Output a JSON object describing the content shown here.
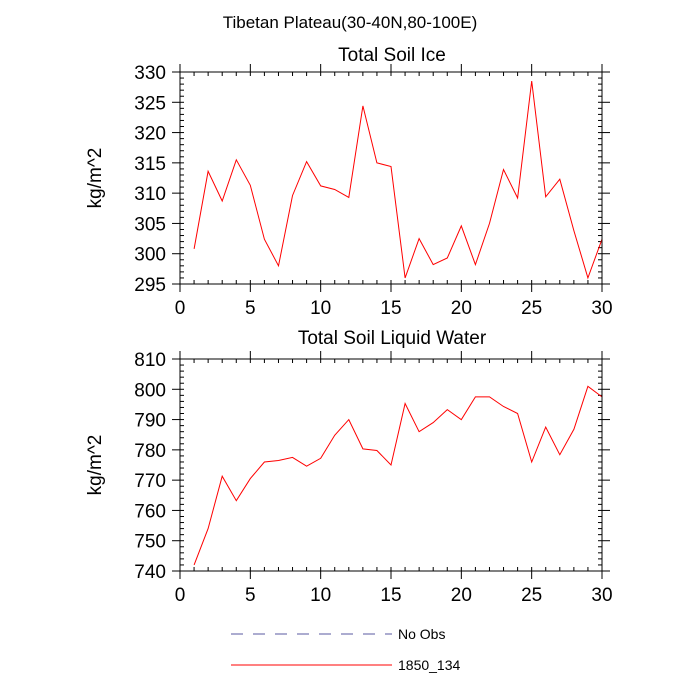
{
  "figure": {
    "suptitle": "Tibetan Plateau(30-40N,80-100E)"
  },
  "chart_data": [
    {
      "type": "line",
      "title": "Total Soil Ice",
      "xlabel": "",
      "ylabel": "kg/m^2",
      "xlim": [
        0,
        30
      ],
      "ylim": [
        295,
        330
      ],
      "xticks": [
        0,
        5,
        10,
        15,
        20,
        25,
        30
      ],
      "yticks": [
        295,
        300,
        305,
        310,
        315,
        320,
        325,
        330
      ],
      "x": [
        1,
        2,
        3,
        4,
        5,
        6,
        7,
        8,
        9,
        10,
        11,
        12,
        13,
        14,
        15,
        16,
        17,
        18,
        19,
        20,
        21,
        22,
        23,
        24,
        25,
        26,
        27,
        28,
        29,
        30
      ],
      "series": [
        {
          "name": "1850_134",
          "color": "#ff0000",
          "values": [
            300.8,
            313.6,
            308.7,
            315.5,
            311.3,
            302.4,
            298.0,
            309.6,
            315.2,
            311.2,
            310.6,
            309.3,
            324.4,
            315.0,
            314.4,
            296.0,
            302.5,
            298.2,
            299.3,
            304.6,
            298.2,
            305.0,
            313.9,
            309.2,
            328.5,
            309.4,
            312.3,
            303.8,
            296.0,
            302.4
          ]
        }
      ]
    },
    {
      "type": "line",
      "title": "Total Soil Liquid Water",
      "xlabel": "",
      "ylabel": "kg/m^2",
      "xlim": [
        0,
        30
      ],
      "ylim": [
        740,
        810
      ],
      "xticks": [
        0,
        5,
        10,
        15,
        20,
        25,
        30
      ],
      "yticks": [
        740,
        750,
        760,
        770,
        780,
        790,
        800,
        810
      ],
      "x": [
        1,
        2,
        3,
        4,
        5,
        6,
        7,
        8,
        9,
        10,
        11,
        12,
        13,
        14,
        15,
        16,
        17,
        18,
        19,
        20,
        21,
        22,
        23,
        24,
        25,
        26,
        27,
        28,
        29,
        30
      ],
      "series": [
        {
          "name": "1850_134",
          "color": "#ff0000",
          "values": [
            742.0,
            754.0,
            771.3,
            763.2,
            770.5,
            776.0,
            776.5,
            777.5,
            774.6,
            777.2,
            784.8,
            790.0,
            780.3,
            779.8,
            775.0,
            795.3,
            786.0,
            789.0,
            793.3,
            790.0,
            797.5,
            797.5,
            794.3,
            792.0,
            776.0,
            787.5,
            778.4,
            786.8,
            801.0,
            797.5
          ]
        }
      ]
    }
  ],
  "legend": {
    "placement": "bottom",
    "items": [
      {
        "label": "No Obs",
        "color": "#5a5aa0",
        "style": "dashed"
      },
      {
        "label": "1850_134",
        "color": "#ff0000",
        "style": "solid"
      }
    ]
  }
}
